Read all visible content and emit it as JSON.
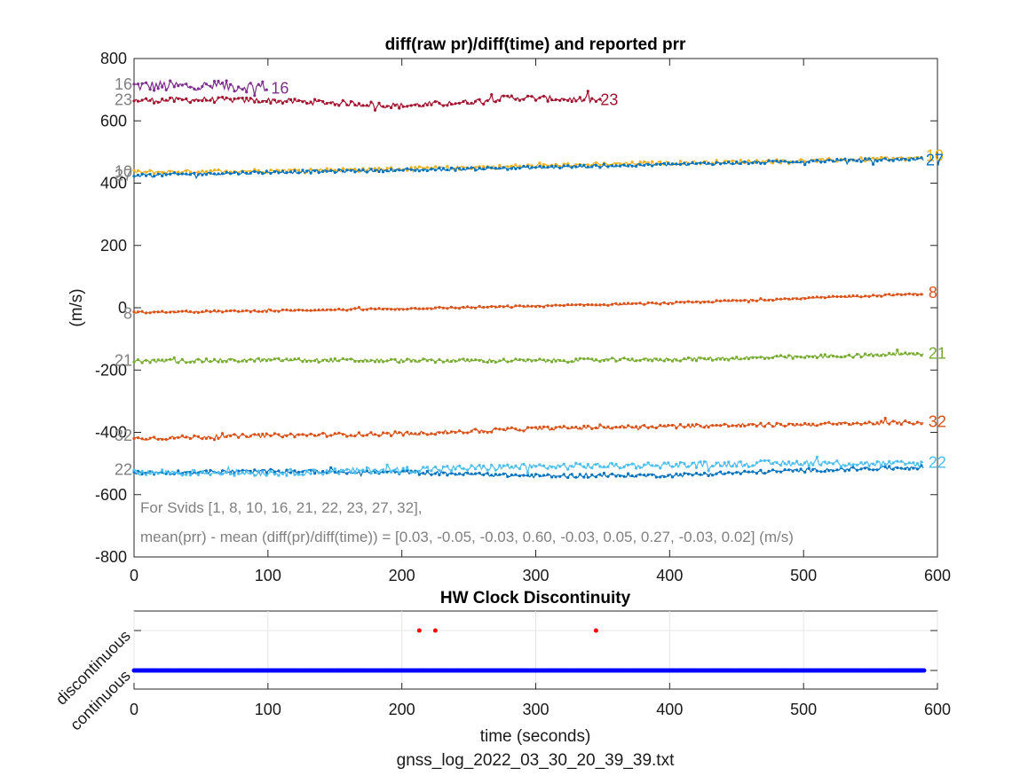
{
  "filename": "gnss_log_2022_03_30_20_39_39.txt",
  "chart_data": [
    {
      "type": "line",
      "title": "diff(raw pr)/diff(time) and reported prr",
      "xlabel": "",
      "ylabel": "(m/s)",
      "xlim": [
        0,
        600
      ],
      "ylim": [
        -800,
        800
      ],
      "xticks": [
        0,
        100,
        200,
        300,
        400,
        500,
        600
      ],
      "yticks": [
        -800,
        -600,
        -400,
        -200,
        0,
        200,
        400,
        600,
        800
      ],
      "grid": false,
      "annotations": [
        "For Svids [1, 8, 10, 16, 21, 22, 23, 27, 32],",
        "mean(prr) - mean (diff(pr)/diff(time)) = [0.03, -0.05, -0.03, 0.60, -0.03, 0.05, 0.27, -0.03, 0.02] (m/s)"
      ],
      "series": [
        {
          "name": "16",
          "color": "#7E2F8E",
          "x": [
            0,
            100
          ],
          "y": [
            712,
            710
          ],
          "noise": 18,
          "start_label_color": "#808080"
        },
        {
          "name": "23",
          "color": "#A2142F",
          "x": [
            0,
            50,
            100,
            150,
            200,
            250,
            280,
            320,
            350
          ],
          "y": [
            665,
            668,
            665,
            658,
            648,
            660,
            675,
            670,
            665
          ],
          "noise": 9,
          "start_label_color": "#808080"
        },
        {
          "name": "10",
          "color": "#EDB120",
          "x": [
            0,
            100,
            200,
            300,
            400,
            500,
            590
          ],
          "y": [
            435,
            440,
            445,
            455,
            465,
            472,
            480
          ],
          "noise": 6,
          "start_label_color": "#808080"
        },
        {
          "name": "27",
          "color": "#0072BD",
          "x": [
            0,
            100,
            200,
            300,
            400,
            500,
            590
          ],
          "y": [
            425,
            435,
            442,
            450,
            460,
            470,
            478
          ],
          "noise": 5,
          "start_label_color": "#808080"
        },
        {
          "name": "8",
          "color": "#D95319",
          "x": [
            0,
            100,
            200,
            300,
            400,
            500,
            590
          ],
          "y": [
            -15,
            -10,
            -3,
            5,
            15,
            30,
            45
          ],
          "noise": 3,
          "start_label_color": "#808080"
        },
        {
          "name": "21",
          "color": "#77AC30",
          "x": [
            0,
            100,
            200,
            300,
            400,
            500,
            590
          ],
          "y": [
            -172,
            -168,
            -170,
            -170,
            -166,
            -158,
            -148
          ],
          "noise": 6,
          "start_label_color": "#808080"
        },
        {
          "name": "32",
          "color": "#D95319",
          "x": [
            0,
            100,
            200,
            300,
            400,
            500,
            590
          ],
          "y": [
            -420,
            -410,
            -405,
            -388,
            -380,
            -375,
            -368
          ],
          "noise": 6,
          "start_label_color": "#808080"
        },
        {
          "name": "1",
          "color": "#0072BD",
          "x": [
            0,
            100,
            200,
            300,
            400,
            500,
            590
          ],
          "y": [
            -530,
            -525,
            -528,
            -540,
            -538,
            -522,
            -512
          ],
          "noise": 6,
          "start_label_color": "#808080"
        },
        {
          "name": "22",
          "color": "#4DBEEE",
          "x": [
            0,
            100,
            200,
            300,
            400,
            500,
            590
          ],
          "y": [
            -528,
            -530,
            -520,
            -510,
            -505,
            -498,
            -502
          ],
          "noise": 10,
          "start_label_color": "#808080"
        }
      ],
      "end_labels": [
        {
          "text": "16",
          "x": 101,
          "y": 705,
          "color": "#7E2F8E"
        },
        {
          "text": "23",
          "x": 347,
          "y": 668,
          "color": "#A2142F"
        },
        {
          "text": "10",
          "x": 590,
          "y": 488,
          "color": "#EDB120"
        },
        {
          "text": "27",
          "x": 590,
          "y": 474,
          "color": "#0072BD"
        },
        {
          "text": "8",
          "x": 592,
          "y": 48,
          "color": "#D95319"
        },
        {
          "text": "21",
          "x": 592,
          "y": -146,
          "color": "#77AC30"
        },
        {
          "text": "32",
          "x": 592,
          "y": -366,
          "color": "#D95319"
        },
        {
          "text": "22",
          "x": 592,
          "y": -497,
          "color": "#4DBEEE"
        }
      ],
      "start_labels": [
        {
          "text": "16",
          "y": 718
        },
        {
          "text": "23",
          "y": 667
        },
        {
          "text": "10",
          "y": 437
        },
        {
          "text": "27",
          "y": 425
        },
        {
          "text": "8",
          "y": -18
        },
        {
          "text": "21",
          "y": -170
        },
        {
          "text": "32",
          "y": -410
        },
        {
          "text": "22",
          "y": -520
        }
      ]
    },
    {
      "type": "scatter",
      "title": "HW Clock Discontinuity",
      "xlabel": "time (seconds)",
      "ylabel": "",
      "xlim": [
        0,
        600
      ],
      "xticks": [
        0,
        100,
        200,
        300,
        400,
        500,
        600
      ],
      "yticklabels": [
        "continuous",
        "discontinuous"
      ],
      "grid": true,
      "series": [
        {
          "name": "continuous",
          "color": "#0000FF",
          "x_range": [
            0,
            590
          ],
          "level": 0
        },
        {
          "name": "discontinuous",
          "color": "#FF0000",
          "x": [
            213,
            225,
            345
          ],
          "level": 1
        }
      ]
    }
  ]
}
